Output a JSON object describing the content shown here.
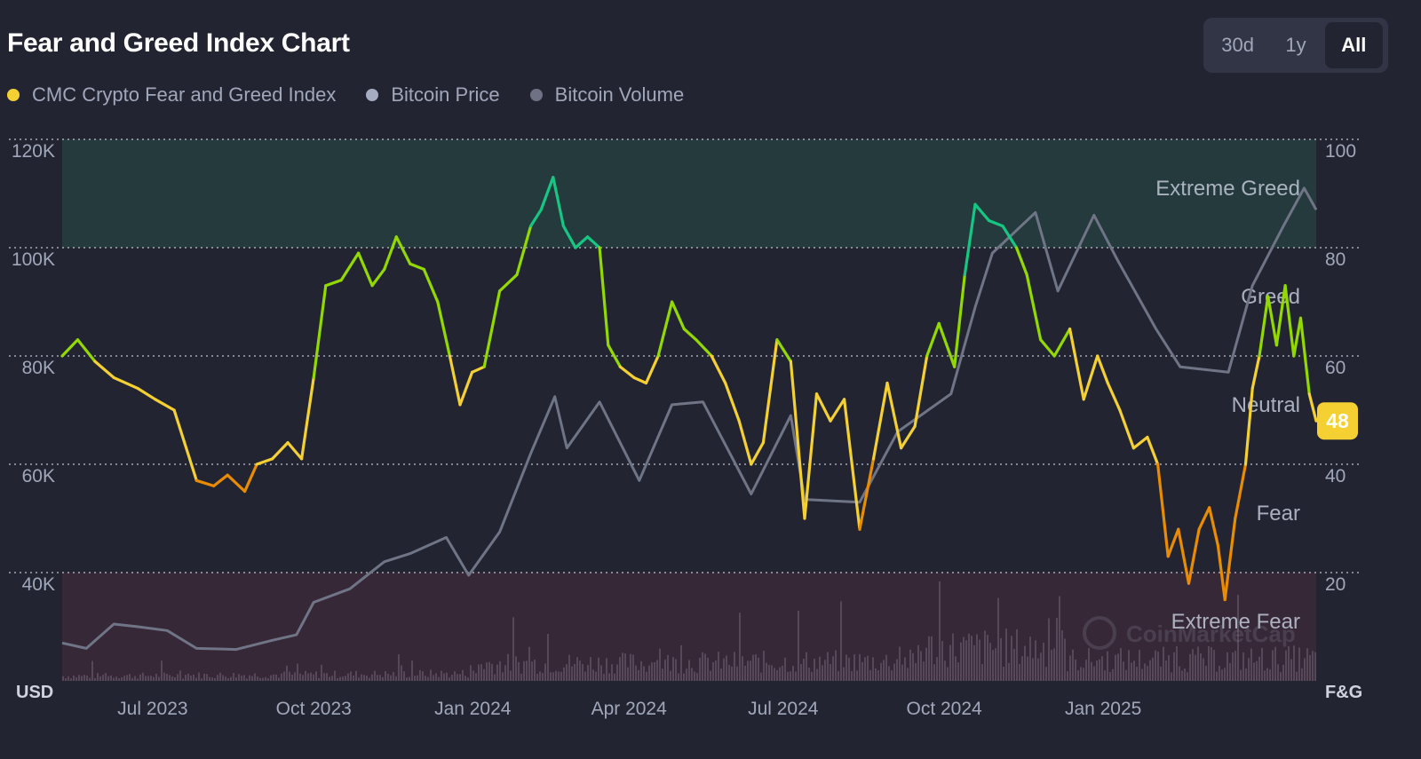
{
  "header": {
    "title": "Fear and Greed Index Chart"
  },
  "range": {
    "options": [
      "30d",
      "1y",
      "All"
    ],
    "selected": "All"
  },
  "legend": [
    {
      "label": "CMC Crypto Fear and Greed Index",
      "color": "#f5d033"
    },
    {
      "label": "Bitcoin Price",
      "color": "#a6adc2"
    },
    {
      "label": "Bitcoin Volume",
      "color": "#6e7284"
    }
  ],
  "colors": {
    "extreme_greed": "#16c784",
    "greed": "#93d900",
    "neutral": "#f5d033",
    "fear": "#ea8c00",
    "extreme_fear": "#ea3943",
    "price_line": "#6f7486",
    "volume_bar": "#5c4e5f",
    "current_badge": "#f5d033"
  },
  "watermark": "CoinMarketCap",
  "chart_data": {
    "type": "line",
    "left_axis": {
      "label": "USD",
      "ticks": [
        "40K",
        "60K",
        "80K",
        "100K",
        "120K"
      ],
      "ylim": [
        20000,
        120000
      ]
    },
    "right_axis": {
      "label": "F&G",
      "ticks": [
        "20",
        "40",
        "60",
        "80",
        "100"
      ],
      "ylim": [
        0,
        100
      ]
    },
    "x_ticks": [
      "Jul 2023",
      "Oct 2023",
      "Jan 2024",
      "Apr 2024",
      "Jul 2024",
      "Oct 2024",
      "Jan 2025"
    ],
    "xlim": [
      "2023-06-01",
      "2025-05-29"
    ],
    "zones": [
      {
        "label": "Extreme Greed",
        "from": 80,
        "to": 100
      },
      {
        "label": "Greed",
        "from": 60,
        "to": 80
      },
      {
        "label": "Neutral",
        "from": 40,
        "to": 60
      },
      {
        "label": "Fear",
        "from": 20,
        "to": 40
      },
      {
        "label": "Extreme Fear",
        "from": 0,
        "to": 20
      }
    ],
    "current_value": "48",
    "series": [
      {
        "name": "CMC Crypto Fear and Greed Index",
        "axis": "right",
        "points": [
          [
            "2023-06-01",
            60
          ],
          [
            "2023-06-10",
            63
          ],
          [
            "2023-06-20",
            59
          ],
          [
            "2023-07-01",
            56
          ],
          [
            "2023-07-15",
            54
          ],
          [
            "2023-07-25",
            52
          ],
          [
            "2023-08-05",
            50
          ],
          [
            "2023-08-18",
            37
          ],
          [
            "2023-08-28",
            36
          ],
          [
            "2023-09-05",
            38
          ],
          [
            "2023-09-15",
            35
          ],
          [
            "2023-09-22",
            40
          ],
          [
            "2023-10-01",
            41
          ],
          [
            "2023-10-10",
            44
          ],
          [
            "2023-10-18",
            41
          ],
          [
            "2023-10-25",
            56
          ],
          [
            "2023-11-01",
            73
          ],
          [
            "2023-11-10",
            74
          ],
          [
            "2023-11-20",
            79
          ],
          [
            "2023-11-28",
            73
          ],
          [
            "2023-12-05",
            76
          ],
          [
            "2023-12-12",
            82
          ],
          [
            "2023-12-20",
            77
          ],
          [
            "2023-12-28",
            76
          ],
          [
            "2024-01-05",
            70
          ],
          [
            "2024-01-12",
            60
          ],
          [
            "2024-01-18",
            51
          ],
          [
            "2024-01-25",
            57
          ],
          [
            "2024-02-01",
            58
          ],
          [
            "2024-02-10",
            72
          ],
          [
            "2024-02-20",
            75
          ],
          [
            "2024-02-28",
            84
          ],
          [
            "2024-03-05",
            87
          ],
          [
            "2024-03-12",
            93
          ],
          [
            "2024-03-18",
            84
          ],
          [
            "2024-03-25",
            80
          ],
          [
            "2024-04-01",
            82
          ],
          [
            "2024-04-08",
            80
          ],
          [
            "2024-04-13",
            62
          ],
          [
            "2024-04-20",
            58
          ],
          [
            "2024-04-28",
            56
          ],
          [
            "2024-05-05",
            55
          ],
          [
            "2024-05-12",
            60
          ],
          [
            "2024-05-20",
            70
          ],
          [
            "2024-05-27",
            65
          ],
          [
            "2024-06-03",
            63
          ],
          [
            "2024-06-12",
            60
          ],
          [
            "2024-06-20",
            55
          ],
          [
            "2024-06-28",
            48
          ],
          [
            "2024-07-05",
            40
          ],
          [
            "2024-07-12",
            44
          ],
          [
            "2024-07-20",
            63
          ],
          [
            "2024-07-28",
            59
          ],
          [
            "2024-08-05",
            30
          ],
          [
            "2024-08-12",
            53
          ],
          [
            "2024-08-20",
            48
          ],
          [
            "2024-08-28",
            52
          ],
          [
            "2024-09-06",
            28
          ],
          [
            "2024-09-14",
            41
          ],
          [
            "2024-09-22",
            55
          ],
          [
            "2024-09-30",
            43
          ],
          [
            "2024-10-08",
            47
          ],
          [
            "2024-10-15",
            60
          ],
          [
            "2024-10-22",
            66
          ],
          [
            "2024-10-31",
            58
          ],
          [
            "2024-11-06",
            75
          ],
          [
            "2024-11-12",
            88
          ],
          [
            "2024-11-20",
            85
          ],
          [
            "2024-11-28",
            84
          ],
          [
            "2024-12-06",
            80
          ],
          [
            "2024-12-12",
            75
          ],
          [
            "2024-12-20",
            63
          ],
          [
            "2024-12-28",
            60
          ],
          [
            "2025-01-06",
            65
          ],
          [
            "2025-01-14",
            52
          ],
          [
            "2025-01-22",
            60
          ],
          [
            "2025-01-28",
            55
          ],
          [
            "2025-02-04",
            50
          ],
          [
            "2025-02-12",
            43
          ],
          [
            "2025-02-20",
            45
          ],
          [
            "2025-02-26",
            40
          ],
          [
            "2025-03-04",
            23
          ],
          [
            "2025-03-10",
            28
          ],
          [
            "2025-03-16",
            18
          ],
          [
            "2025-03-22",
            28
          ],
          [
            "2025-03-28",
            32
          ],
          [
            "2025-04-02",
            25
          ],
          [
            "2025-04-06",
            15
          ],
          [
            "2025-04-12",
            30
          ],
          [
            "2025-04-18",
            40
          ],
          [
            "2025-04-22",
            54
          ],
          [
            "2025-04-26",
            60
          ],
          [
            "2025-05-01",
            71
          ],
          [
            "2025-05-06",
            62
          ],
          [
            "2025-05-11",
            73
          ],
          [
            "2025-05-16",
            60
          ],
          [
            "2025-05-20",
            67
          ],
          [
            "2025-05-25",
            53
          ],
          [
            "2025-05-29",
            48
          ]
        ]
      },
      {
        "name": "Bitcoin Price",
        "axis": "left",
        "points": [
          [
            "2023-06-01",
            27000
          ],
          [
            "2023-06-15",
            26000
          ],
          [
            "2023-07-01",
            30500
          ],
          [
            "2023-07-15",
            30000
          ],
          [
            "2023-08-01",
            29300
          ],
          [
            "2023-08-18",
            26000
          ],
          [
            "2023-09-10",
            25800
          ],
          [
            "2023-10-01",
            27500
          ],
          [
            "2023-10-15",
            28500
          ],
          [
            "2023-10-25",
            34500
          ],
          [
            "2023-11-15",
            37000
          ],
          [
            "2023-12-05",
            42000
          ],
          [
            "2023-12-20",
            43500
          ],
          [
            "2024-01-10",
            46500
          ],
          [
            "2024-01-23",
            39500
          ],
          [
            "2024-02-10",
            47500
          ],
          [
            "2024-02-28",
            62000
          ],
          [
            "2024-03-13",
            72500
          ],
          [
            "2024-03-20",
            63000
          ],
          [
            "2024-04-08",
            71500
          ],
          [
            "2024-05-01",
            57000
          ],
          [
            "2024-05-20",
            71000
          ],
          [
            "2024-06-07",
            71500
          ],
          [
            "2024-07-05",
            54500
          ],
          [
            "2024-07-28",
            69000
          ],
          [
            "2024-08-05",
            53500
          ],
          [
            "2024-09-06",
            53000
          ],
          [
            "2024-09-28",
            66000
          ],
          [
            "2024-10-29",
            73000
          ],
          [
            "2024-11-12",
            89000
          ],
          [
            "2024-11-22",
            99000
          ],
          [
            "2024-12-17",
            106500
          ],
          [
            "2024-12-30",
            92000
          ],
          [
            "2025-01-20",
            106000
          ],
          [
            "2025-02-03",
            97500
          ],
          [
            "2025-02-25",
            85000
          ],
          [
            "2025-03-11",
            78000
          ],
          [
            "2025-04-08",
            77000
          ],
          [
            "2025-04-22",
            93000
          ],
          [
            "2025-05-10",
            104000
          ],
          [
            "2025-05-22",
            111000
          ],
          [
            "2025-05-29",
            107000
          ]
        ]
      },
      {
        "name": "Bitcoin Volume",
        "axis": "left"
      }
    ]
  }
}
